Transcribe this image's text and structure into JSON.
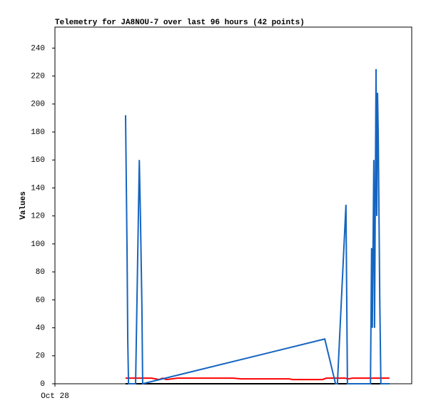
{
  "chart_data": {
    "type": "line",
    "title": "Telemetry for JA8NOU-7 over last 96 hours (42 points)",
    "y_label": "Values",
    "xlim": [
      0,
      96
    ],
    "xticks": [
      {
        "value": 0,
        "label": "Oct 28"
      }
    ],
    "ylim": [
      0,
      255
    ],
    "yticks": [
      0,
      20,
      40,
      60,
      80,
      100,
      120,
      140,
      160,
      180,
      200,
      220,
      240
    ],
    "series": [
      {
        "color": "#000000",
        "x": [
          19.0,
          90.0
        ],
        "values": [
          0,
          0
        ]
      },
      {
        "color": "#ff0000",
        "x": [
          19.0,
          26,
          28,
          29,
          30,
          33,
          48,
          50,
          63,
          64,
          72,
          73,
          78,
          79,
          80,
          90.0
        ],
        "values": [
          4,
          4,
          3,
          4,
          3,
          4,
          4,
          3.5,
          3.5,
          3,
          3,
          4,
          4,
          3.5,
          4,
          4
        ]
      },
      {
        "color": "#1565c0",
        "x": [
          19.0,
          19.4,
          19.6,
          19.8,
          21.7,
          22.7,
          23.0,
          23.4,
          23.6,
          72.6,
          75.5,
          76.0,
          78.3,
          78.7,
          84.9,
          85.2,
          85.4,
          85.8,
          86.0,
          86.4,
          86.6,
          86.8,
          87.0,
          87.4,
          87.7,
          90.0
        ],
        "values": [
          192,
          95,
          30,
          0,
          0,
          160,
          120,
          55,
          0,
          32,
          0,
          0,
          128,
          0,
          0,
          97,
          40,
          160,
          40,
          225,
          120,
          208,
          176,
          60,
          0,
          0
        ]
      }
    ]
  }
}
